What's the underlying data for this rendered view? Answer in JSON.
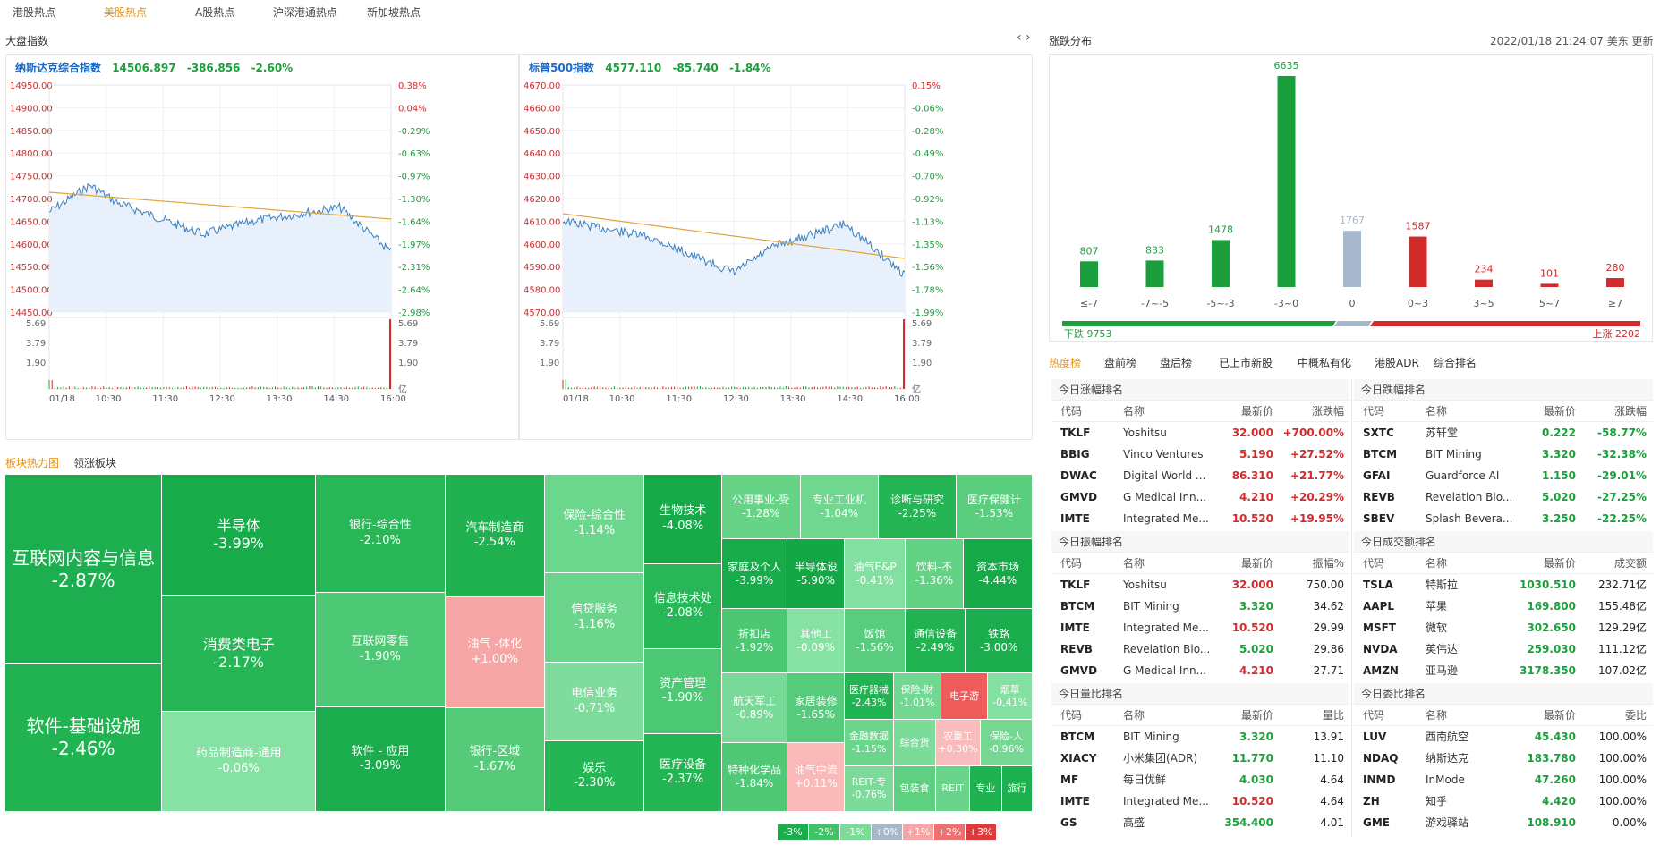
{
  "topnav": {
    "tabs": [
      "港股热点",
      "美股热点",
      "A股热点",
      "沪深港通热点",
      "新加坡热点"
    ],
    "active": 1
  },
  "market": {
    "title": "大盘指数",
    "nav_arrows": "‹ ›",
    "ixic": {
      "name": "纳斯达克综合指数",
      "price": "14506.897",
      "change": "-386.856",
      "pct": "-2.60%",
      "y_left": [
        "14950.00",
        "14900.00",
        "14850.00",
        "14800.00",
        "14750.00",
        "14700.00",
        "14650.00",
        "14600.00",
        "14550.00",
        "14500.00",
        "14450.00"
      ],
      "y_right": [
        "0.38%",
        "0.04%",
        "-0.29%",
        "-0.63%",
        "-0.97%",
        "-1.30%",
        "-1.64%",
        "-1.97%",
        "-2.31%",
        "-2.64%",
        "-2.98%"
      ],
      "vol_left": [
        "5.69",
        "3.79",
        "1.90"
      ],
      "vol_right": [
        "5.69",
        "3.79",
        "1.90",
        "亿"
      ]
    },
    "spx": {
      "name": "标普500指数",
      "price": "4577.110",
      "change": "-85.740",
      "pct": "-1.84%",
      "y_left": [
        "4670.00",
        "4660.00",
        "4650.00",
        "4640.00",
        "4630.00",
        "4620.00",
        "4610.00",
        "4600.00",
        "4590.00",
        "4580.00",
        "4570.00"
      ],
      "y_right": [
        "0.15%",
        "-0.06%",
        "-0.28%",
        "-0.49%",
        "-0.70%",
        "-0.92%",
        "-1.13%",
        "-1.35%",
        "-1.56%",
        "-1.78%",
        "-1.99%"
      ],
      "vol_left": [
        "5.69",
        "3.79",
        "1.90"
      ],
      "vol_right": [
        "5.69",
        "3.79",
        "1.90",
        "亿"
      ]
    },
    "x_ticks": [
      "01/18",
      "10:30",
      "11:30",
      "12:30",
      "13:30",
      "14:30",
      "16:00"
    ],
    "colors": {
      "price_line": "#3a7fc1",
      "avg_line": "#e0a33a",
      "area": "#e8f1fb",
      "down": "#1b9f3c",
      "up": "#d22b2b"
    }
  },
  "distribution": {
    "title": "涨跌分布",
    "timestamp": "2022/01/18 21:24:07 美东 更新",
    "down_label": "下跌 9753",
    "up_label": "上涨 2202",
    "chart_data": {
      "type": "bar",
      "categories": [
        "≤-7",
        "-7~-5",
        "-5~-3",
        "-3~0",
        "0",
        "0~3",
        "3~5",
        "5~7",
        "≥7"
      ],
      "values": [
        807,
        833,
        1478,
        6635,
        1767,
        1587,
        234,
        101,
        280
      ],
      "colors": [
        "#1b9f3c",
        "#1b9f3c",
        "#1b9f3c",
        "#1b9f3c",
        "#a8b8cc",
        "#d22b2b",
        "#d22b2b",
        "#d22b2b",
        "#d22b2b"
      ]
    }
  },
  "heat": {
    "tab1": "板块热力图",
    "tab2": "领涨板块",
    "tiles": [
      {
        "name": "互联网内容与信息",
        "pct": "-2.87%",
        "color": "#1daf4f"
      },
      {
        "name": "软件-基础设施",
        "pct": "-2.46%",
        "color": "#21b351"
      },
      {
        "name": "半导体",
        "pct": "-3.99%",
        "color": "#17ab49"
      },
      {
        "name": "消费类电子",
        "pct": "-2.17%",
        "color": "#26b656"
      },
      {
        "name": "药品制造商-通用",
        "pct": "-0.06%",
        "color": "#86e2a3"
      },
      {
        "name": "银行-综合性",
        "pct": "-2.10%",
        "color": "#27b757"
      },
      {
        "name": "互联网零售",
        "pct": "-1.90%",
        "color": "#4dc874"
      },
      {
        "name": "软件 - 应用",
        "pct": "-3.09%",
        "color": "#1bad4d"
      },
      {
        "name": "汽车制造商",
        "pct": "-2.54%",
        "color": "#20b250"
      },
      {
        "name": "油气 -体化",
        "pct": "+1.00%",
        "color": "#f7a6a6"
      },
      {
        "name": "银行-区域",
        "pct": "-1.67%",
        "color": "#55cb7a"
      },
      {
        "name": "保险-综合性",
        "pct": "-1.14%",
        "color": "#6dd68d"
      },
      {
        "name": "信贷服务",
        "pct": "-1.16%",
        "color": "#6bd58b"
      },
      {
        "name": "电信业务",
        "pct": "-0.71%",
        "color": "#7fdc9c"
      },
      {
        "name": "娱乐",
        "pct": "-2.30%",
        "color": "#24b554"
      },
      {
        "name": "生物技术",
        "pct": "-4.08%",
        "color": "#16aa48"
      },
      {
        "name": "信息技术处",
        "pct": "-2.08%",
        "color": "#27b757"
      },
      {
        "name": "资产管理",
        "pct": "-1.90%",
        "color": "#4dc874"
      },
      {
        "name": "医疗设备",
        "pct": "-2.37%",
        "color": "#23b453"
      },
      {
        "name": "公用事业-受",
        "pct": "-1.28%",
        "color": "#66d387"
      },
      {
        "name": "专业工业机",
        "pct": "-1.04%",
        "color": "#70d790"
      },
      {
        "name": "诊断与研究",
        "pct": "-2.25%",
        "color": "#25b555"
      },
      {
        "name": "医疗保健计",
        "pct": "-1.53%",
        "color": "#5acd7e"
      },
      {
        "name": "家庭及个人",
        "pct": "-3.99%",
        "color": "#17ab49"
      },
      {
        "name": "半导体设",
        "pct": "-5.90%",
        "color": "#13a845"
      },
      {
        "name": "油气E&P",
        "pct": "-0.41%",
        "color": "#84e0a0"
      },
      {
        "name": "饮料-不",
        "pct": "-1.36%",
        "color": "#63d284"
      },
      {
        "name": "资本市场",
        "pct": "-4.44%",
        "color": "#15a947"
      },
      {
        "name": "折扣店",
        "pct": "-1.92%",
        "color": "#4cc873"
      },
      {
        "name": "其他工",
        "pct": "-0.09%",
        "color": "#86e2a3"
      },
      {
        "name": "饭馆",
        "pct": "-1.56%",
        "color": "#59cd7d"
      },
      {
        "name": "通信设备",
        "pct": "-2.49%",
        "color": "#21b351"
      },
      {
        "name": "铁路",
        "pct": "-3.00%",
        "color": "#1bad4d"
      },
      {
        "name": "航天军工",
        "pct": "-0.89%",
        "color": "#78da97"
      },
      {
        "name": "家居装修",
        "pct": "-1.65%",
        "color": "#56cb7b"
      },
      {
        "name": "医疗器械",
        "pct": "-2.43%",
        "color": "#22b352"
      },
      {
        "name": "保险-财",
        "pct": "-1.01%",
        "color": "#71d791"
      },
      {
        "name": "电子游",
        "pct": "",
        "color": "#ef5a5a"
      },
      {
        "name": "烟草",
        "pct": "-0.41%",
        "color": "#84e0a0"
      },
      {
        "name": "金融数据",
        "pct": "-1.15%",
        "color": "#6cd58c"
      },
      {
        "name": "综合货",
        "pct": "",
        "color": "#7bdc99"
      },
      {
        "name": "农重工",
        "pct": "+0.30%",
        "color": "#f9bcbc"
      },
      {
        "name": "保险-人",
        "pct": "-0.96%",
        "color": "#74d893"
      },
      {
        "name": "特种化学品",
        "pct": "-1.84%",
        "color": "#4fc976"
      },
      {
        "name": "油气中流",
        "pct": "+0.11%",
        "color": "#fab9b9"
      },
      {
        "name": "REIT-专",
        "pct": "-0.76%",
        "color": "#7ddb9a"
      },
      {
        "name": "包装食",
        "pct": "",
        "color": "#5fd081"
      },
      {
        "name": "REIT",
        "pct": "",
        "color": "#6ad48a"
      },
      {
        "name": "专业",
        "pct": "",
        "color": "#1fb250"
      },
      {
        "name": "旅行",
        "pct": "",
        "color": "#1cb04e"
      }
    ],
    "legend": [
      {
        "t": "-3%",
        "c": "#1aae4c"
      },
      {
        "t": "-2%",
        "c": "#3fc268"
      },
      {
        "t": "-1%",
        "c": "#7ddb99"
      },
      {
        "t": "+0%",
        "c": "#a8b8cc"
      },
      {
        "t": "+1%",
        "c": "#f7a6a6"
      },
      {
        "t": "+2%",
        "c": "#f06f6f"
      },
      {
        "t": "+3%",
        "c": "#e03a3a"
      }
    ]
  },
  "ranks": {
    "tabs": [
      "热度榜",
      "盘前榜",
      "盘后榜",
      "已上市新股",
      "中概私有化",
      "港股ADR",
      "综合排名"
    ],
    "active": 0,
    "tables": [
      {
        "title": "今日涨幅排名",
        "headers": [
          "代码",
          "名称",
          "最新价",
          "涨跌幅"
        ],
        "rows": [
          [
            "TKLF",
            "Yoshitsu",
            "32.000",
            "+700.00%",
            "up",
            "up"
          ],
          [
            "BBIG",
            "Vinco Ventures",
            "5.190",
            "+27.52%",
            "up",
            "up"
          ],
          [
            "DWAC",
            "Digital World ...",
            "86.310",
            "+21.77%",
            "up",
            "up"
          ],
          [
            "GMVD",
            "G Medical Inn...",
            "4.210",
            "+20.29%",
            "up",
            "up"
          ],
          [
            "IMTE",
            "Integrated Me...",
            "10.520",
            "+19.95%",
            "up",
            "up"
          ]
        ]
      },
      {
        "title": "今日跌幅排名",
        "headers": [
          "代码",
          "名称",
          "最新价",
          "涨跌幅"
        ],
        "rows": [
          [
            "SXTC",
            "苏轩堂",
            "0.222",
            "-58.77%",
            "dn",
            "dn"
          ],
          [
            "BTCM",
            "BIT Mining",
            "3.320",
            "-32.38%",
            "dn",
            "dn"
          ],
          [
            "GFAI",
            "Guardforce AI",
            "1.150",
            "-29.01%",
            "dn",
            "dn"
          ],
          [
            "REVB",
            "Revelation Bio...",
            "5.020",
            "-27.25%",
            "dn",
            "dn"
          ],
          [
            "SBEV",
            "Splash Bevera...",
            "3.250",
            "-22.25%",
            "dn",
            "dn"
          ]
        ]
      },
      {
        "title": "今日振幅排名",
        "headers": [
          "代码",
          "名称",
          "最新价",
          "振幅%"
        ],
        "rows": [
          [
            "TKLF",
            "Yoshitsu",
            "32.000",
            "750.00",
            "up",
            "blk"
          ],
          [
            "BTCM",
            "BIT Mining",
            "3.320",
            "34.62",
            "dn",
            "blk"
          ],
          [
            "IMTE",
            "Integrated Me...",
            "10.520",
            "29.99",
            "up",
            "blk"
          ],
          [
            "REVB",
            "Revelation Bio...",
            "5.020",
            "29.86",
            "dn",
            "blk"
          ],
          [
            "GMVD",
            "G Medical Inn...",
            "4.210",
            "27.71",
            "up",
            "blk"
          ]
        ]
      },
      {
        "title": "今日成交额排名",
        "headers": [
          "代码",
          "名称",
          "最新价",
          "成交额"
        ],
        "rows": [
          [
            "TSLA",
            "特斯拉",
            "1030.510",
            "232.71亿",
            "dn",
            "blk"
          ],
          [
            "AAPL",
            "苹果",
            "169.800",
            "155.48亿",
            "dn",
            "blk"
          ],
          [
            "MSFT",
            "微软",
            "302.650",
            "129.29亿",
            "dn",
            "blk"
          ],
          [
            "NVDA",
            "英伟达",
            "259.030",
            "111.12亿",
            "dn",
            "blk"
          ],
          [
            "AMZN",
            "亚马逊",
            "3178.350",
            "107.02亿",
            "dn",
            "blk"
          ]
        ]
      },
      {
        "title": "今日量比排名",
        "headers": [
          "代码",
          "名称",
          "最新价",
          "量比"
        ],
        "rows": [
          [
            "BTCM",
            "BIT Mining",
            "3.320",
            "13.91",
            "dn",
            "blk"
          ],
          [
            "XIACY",
            "小米集团(ADR)",
            "11.770",
            "11.10",
            "dn",
            "blk"
          ],
          [
            "MF",
            "每日优鲜",
            "4.030",
            "4.64",
            "dn",
            "blk"
          ],
          [
            "IMTE",
            "Integrated Me...",
            "10.520",
            "4.64",
            "up",
            "blk"
          ],
          [
            "GS",
            "高盛",
            "354.400",
            "4.01",
            "dn",
            "blk"
          ]
        ]
      },
      {
        "title": "今日委比排名",
        "headers": [
          "代码",
          "名称",
          "最新价",
          "委比"
        ],
        "rows": [
          [
            "LUV",
            "西南航空",
            "45.430",
            "100.00%",
            "dn",
            "blk"
          ],
          [
            "NDAQ",
            "纳斯达克",
            "183.780",
            "100.00%",
            "dn",
            "blk"
          ],
          [
            "INMD",
            "InMode",
            "47.260",
            "100.00%",
            "dn",
            "blk"
          ],
          [
            "ZH",
            "知乎",
            "4.420",
            "100.00%",
            "dn",
            "blk"
          ],
          [
            "GME",
            "游戏驿站",
            "108.910",
            "0.00%",
            "dn",
            "blk"
          ]
        ]
      }
    ]
  }
}
